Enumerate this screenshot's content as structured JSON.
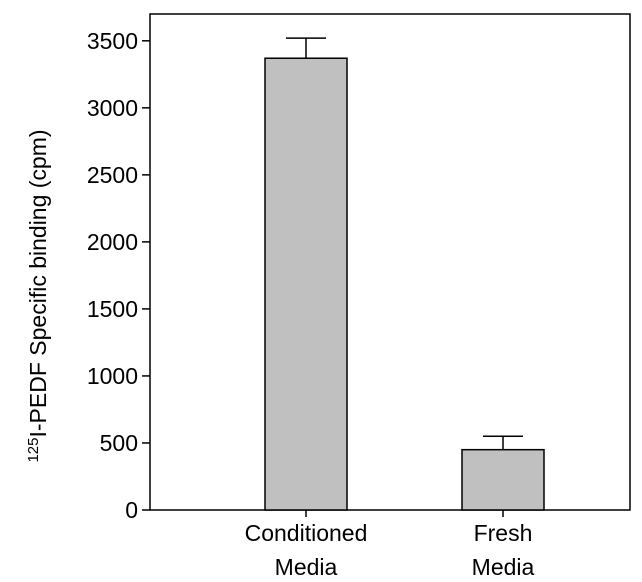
{
  "chart_data": {
    "type": "bar",
    "categories": [
      [
        "Conditioned",
        "Media"
      ],
      [
        "Fresh",
        "Media"
      ]
    ],
    "values": [
      3370,
      450
    ],
    "errors": [
      150,
      100
    ],
    "ylim": [
      0,
      3700
    ],
    "yticks": [
      0,
      500,
      1000,
      1500,
      2000,
      2500,
      3000,
      3500
    ],
    "ytick_labels": [
      "0",
      "500",
      "1000",
      "1500",
      "2000",
      "2500",
      "3000",
      "3500"
    ],
    "ylabel": {
      "superscript": "125",
      "text": "I-PEDF Specific binding (cpm)"
    },
    "xlabel": "",
    "title": "",
    "bar_color": "#c0c0c0",
    "grid": false,
    "legend": "none"
  }
}
